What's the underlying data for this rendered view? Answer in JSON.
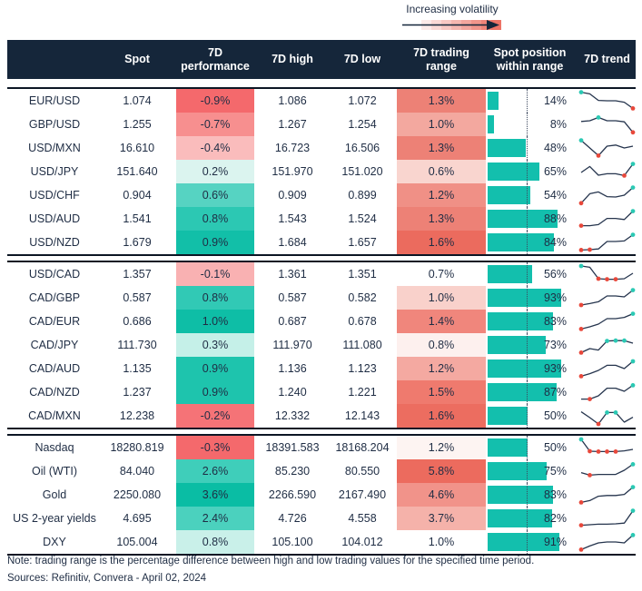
{
  "legend": {
    "label": "Increasing volatility",
    "gradient": [
      "#FFFFFF",
      "#FCEAE8",
      "#FAD9D5",
      "#F8C8C3",
      "#F5B7B0",
      "#F3A69E",
      "#F1958B",
      "#EF8479",
      "#ED7366"
    ]
  },
  "colors": {
    "header_bg": "#15263A",
    "header_text": "#FFFFFF",
    "body_text": "#1F2D44",
    "group_border": "#0C1624",
    "position_bar": "#13BFAD",
    "trend_line": "#25344D",
    "trend_dot_high": "#2BC9B4",
    "trend_dot_low": "#E8483B",
    "arrow": "#15263A"
  },
  "chart_data": {
    "type": "table",
    "columns": [
      "",
      "Spot",
      "7D performance",
      "7D high",
      "7D low",
      "7D trading range",
      "Spot position within range",
      "7D trend"
    ],
    "position_midline_pct": 50,
    "groups": [
      {
        "rows": [
          {
            "label": "EUR/USD",
            "spot": "1.074",
            "perf": "-0.9%",
            "perf_color": "#F4696C",
            "high": "1.086",
            "low": "1.072",
            "range": "1.3%",
            "range_color": "#ED8176",
            "position_pct": 14,
            "position_label": "14%",
            "trend": {
              "y": [
                0.97,
                0.88,
                0.52,
                0.5,
                0.5,
                0.42,
                0.08
              ],
              "marks": [
                {
                  "i": 0,
                  "t": "high"
                },
                {
                  "i": 6,
                  "t": "low"
                }
              ]
            }
          },
          {
            "label": "GBP/USD",
            "spot": "1.255",
            "perf": "-0.7%",
            "perf_color": "#F78F8F",
            "high": "1.267",
            "low": "1.254",
            "range": "1.0%",
            "range_color": "#F3A89F",
            "position_pct": 8,
            "position_label": "8%",
            "trend": {
              "y": [
                0.66,
                0.7,
                0.88,
                0.7,
                0.7,
                0.64,
                0.06
              ],
              "marks": [
                {
                  "i": 2,
                  "t": "high"
                },
                {
                  "i": 6,
                  "t": "low"
                }
              ]
            }
          },
          {
            "label": "USD/MXN",
            "spot": "16.610",
            "perf": "-0.4%",
            "perf_color": "#FABCBC",
            "high": "16.723",
            "low": "16.506",
            "range": "1.3%",
            "range_color": "#ED8176",
            "position_pct": 48,
            "position_label": "48%",
            "trend": {
              "y": [
                0.92,
                0.5,
                0.08,
                0.6,
                0.66,
                0.5,
                0.6
              ],
              "marks": [
                {
                  "i": 0,
                  "t": "high"
                },
                {
                  "i": 2,
                  "t": "low"
                }
              ]
            }
          },
          {
            "label": "USD/JPY",
            "spot": "151.640",
            "perf": "0.2%",
            "perf_color": "#DBF4EF",
            "high": "151.970",
            "low": "151.020",
            "range": "0.6%",
            "range_color": "#F9D5CF",
            "position_pct": 65,
            "position_label": "65%",
            "trend": {
              "y": [
                0.45,
                0.78,
                0.3,
                0.38,
                0.38,
                0.28,
                0.92
              ],
              "marks": [
                {
                  "i": 5,
                  "t": "low"
                },
                {
                  "i": 6,
                  "t": "high"
                }
              ]
            }
          },
          {
            "label": "USD/CHF",
            "spot": "0.904",
            "perf": "0.6%",
            "perf_color": "#56D3C2",
            "high": "0.909",
            "low": "0.899",
            "range": "1.2%",
            "range_color": "#F09086",
            "position_pct": 54,
            "position_label": "54%",
            "trend": {
              "y": [
                0.06,
                0.58,
                0.68,
                0.42,
                0.4,
                0.5,
                0.92
              ],
              "marks": [
                {
                  "i": 0,
                  "t": "low"
                },
                {
                  "i": 6,
                  "t": "high"
                }
              ]
            }
          },
          {
            "label": "USD/AUD",
            "spot": "1.541",
            "perf": "0.8%",
            "perf_color": "#2CC8B3",
            "high": "1.543",
            "low": "1.524",
            "range": "1.3%",
            "range_color": "#ED8176",
            "position_pct": 88,
            "position_label": "88%",
            "trend": {
              "y": [
                0.12,
                0.12,
                0.18,
                0.52,
                0.52,
                0.46,
                0.92
              ],
              "marks": [
                {
                  "i": 0,
                  "t": "low"
                },
                {
                  "i": 6,
                  "t": "high"
                }
              ]
            }
          },
          {
            "label": "USD/NZD",
            "spot": "1.679",
            "perf": "0.9%",
            "perf_color": "#12BFA8",
            "high": "1.684",
            "low": "1.657",
            "range": "1.6%",
            "range_color": "#EB6B5E",
            "position_pct": 84,
            "position_label": "84%",
            "trend": {
              "y": [
                0.08,
                0.1,
                0.14,
                0.55,
                0.55,
                0.58,
                0.92
              ],
              "marks": [
                {
                  "i": 0,
                  "t": "low"
                },
                {
                  "i": 1,
                  "t": "low"
                },
                {
                  "i": 6,
                  "t": "high"
                }
              ]
            }
          }
        ]
      },
      {
        "rows": [
          {
            "label": "USD/CAD",
            "spot": "1.357",
            "perf": "-0.1%",
            "perf_color": "#F9B1B2",
            "high": "1.361",
            "low": "1.351",
            "range": "0.7%",
            "range_color": "#FFFFFF",
            "position_pct": 56,
            "position_label": "56%",
            "trend": {
              "y": [
                0.95,
                0.88,
                0.25,
                0.22,
                0.22,
                0.25,
                0.55
              ],
              "marks": [
                {
                  "i": 0,
                  "t": "high"
                },
                {
                  "i": 2,
                  "t": "low"
                },
                {
                  "i": 3,
                  "t": "low"
                },
                {
                  "i": 4,
                  "t": "low"
                }
              ]
            }
          },
          {
            "label": "CAD/GBP",
            "spot": "0.587",
            "perf": "0.8%",
            "perf_color": "#31C9B5",
            "high": "0.587",
            "low": "0.582",
            "range": "1.0%",
            "range_color": "#F9D1CB",
            "position_pct": 93,
            "position_label": "93%",
            "trend": {
              "y": [
                0.1,
                0.18,
                0.28,
                0.6,
                0.6,
                0.55,
                0.92
              ],
              "marks": [
                {
                  "i": 0,
                  "t": "low"
                },
                {
                  "i": 6,
                  "t": "high"
                }
              ]
            }
          },
          {
            "label": "CAD/EUR",
            "spot": "0.686",
            "perf": "1.0%",
            "perf_color": "#0EBEA6",
            "high": "0.687",
            "low": "0.678",
            "range": "1.4%",
            "range_color": "#F0867C",
            "position_pct": 83,
            "position_label": "83%",
            "trend": {
              "y": [
                0.08,
                0.2,
                0.35,
                0.65,
                0.65,
                0.72,
                0.92
              ],
              "marks": [
                {
                  "i": 0,
                  "t": "low"
                },
                {
                  "i": 6,
                  "t": "high"
                }
              ]
            }
          },
          {
            "label": "CAD/JPY",
            "spot": "111.730",
            "perf": "0.3%",
            "perf_color": "#C5F0E8",
            "high": "111.970",
            "low": "111.080",
            "range": "0.8%",
            "range_color": "#FDF0EE",
            "position_pct": 73,
            "position_label": "73%",
            "trend": {
              "y": [
                0.08,
                0.3,
                0.22,
                0.72,
                0.74,
                0.74,
                0.6
              ],
              "marks": [
                {
                  "i": 0,
                  "t": "low"
                },
                {
                  "i": 3,
                  "t": "high"
                },
                {
                  "i": 4,
                  "t": "high"
                },
                {
                  "i": 5,
                  "t": "high"
                }
              ]
            }
          },
          {
            "label": "CAD/AUD",
            "spot": "1.135",
            "perf": "0.9%",
            "perf_color": "#1EC4AD",
            "high": "1.136",
            "low": "1.123",
            "range": "1.2%",
            "range_color": "#F4A9A1",
            "position_pct": 93,
            "position_label": "93%",
            "trend": {
              "y": [
                0.08,
                0.22,
                0.4,
                0.68,
                0.68,
                0.5,
                0.9
              ],
              "marks": [
                {
                  "i": 0,
                  "t": "low"
                },
                {
                  "i": 6,
                  "t": "high"
                }
              ]
            }
          },
          {
            "label": "CAD/NZD",
            "spot": "1.237",
            "perf": "0.9%",
            "perf_color": "#1EC4AD",
            "high": "1.240",
            "low": "1.221",
            "range": "1.5%",
            "range_color": "#EF7A6E",
            "position_pct": 87,
            "position_label": "87%",
            "trend": {
              "y": [
                0.12,
                0.12,
                0.3,
                0.72,
                0.72,
                0.55,
                0.88
              ],
              "marks": [
                {
                  "i": 1,
                  "t": "low"
                },
                {
                  "i": 6,
                  "t": "high"
                }
              ]
            }
          },
          {
            "label": "CAD/MXN",
            "spot": "12.238",
            "perf": "-0.2%",
            "perf_color": "#F57377",
            "high": "12.332",
            "low": "12.143",
            "range": "1.6%",
            "range_color": "#EC6D60",
            "position_pct": 50,
            "position_label": "50%",
            "trend": {
              "y": [
                0.72,
                0.4,
                0.05,
                0.68,
                0.68,
                0.15,
                0.42
              ],
              "marks": [
                {
                  "i": 2,
                  "t": "low"
                },
                {
                  "i": 3,
                  "t": "high"
                },
                {
                  "i": 4,
                  "t": "high"
                }
              ]
            }
          }
        ]
      },
      {
        "rows": [
          {
            "label": "Nasdaq",
            "spot": "18280.819",
            "perf": "-0.3%",
            "perf_color": "#F4696C",
            "high": "18391.583",
            "low": "18168.204",
            "range": "1.2%",
            "range_color": "#FDF4F2",
            "position_pct": 50,
            "position_label": "50%",
            "trend": {
              "y": [
                0.95,
                0.3,
                0.28,
                0.28,
                0.28,
                0.32,
                0.4
              ],
              "marks": [
                {
                  "i": 0,
                  "t": "high"
                },
                {
                  "i": 1,
                  "t": "low"
                },
                {
                  "i": 2,
                  "t": "low"
                },
                {
                  "i": 3,
                  "t": "low"
                },
                {
                  "i": 4,
                  "t": "low"
                }
              ]
            }
          },
          {
            "label": "Oil (WTI)",
            "spot": "84.040",
            "perf": "2.6%",
            "perf_color": "#3FCEBA",
            "high": "85.230",
            "low": "80.550",
            "range": "5.8%",
            "range_color": "#EC6B5E",
            "position_pct": 75,
            "position_label": "75%",
            "trend": {
              "y": [
                0.42,
                0.28,
                0.32,
                0.32,
                0.32,
                0.55,
                0.88
              ],
              "marks": [
                {
                  "i": 1,
                  "t": "low"
                },
                {
                  "i": 6,
                  "t": "high"
                }
              ]
            }
          },
          {
            "label": "Gold",
            "spot": "2250.080",
            "perf": "3.6%",
            "perf_color": "#0ABDA4",
            "high": "2266.590",
            "low": "2167.490",
            "range": "4.6%",
            "range_color": "#F1938A",
            "position_pct": 83,
            "position_label": "83%",
            "trend": {
              "y": [
                0.08,
                0.18,
                0.42,
                0.46,
                0.46,
                0.52,
                0.92
              ],
              "marks": [
                {
                  "i": 0,
                  "t": "low"
                },
                {
                  "i": 6,
                  "t": "high"
                }
              ]
            }
          },
          {
            "label": "US 2-year yields",
            "spot": "4.695",
            "perf": "2.4%",
            "perf_color": "#4BD1BE",
            "high": "4.726",
            "low": "4.558",
            "range": "3.7%",
            "range_color": "#F5B2AA",
            "position_pct": 82,
            "position_label": "82%",
            "trend": {
              "y": [
                0.12,
                0.15,
                0.18,
                0.18,
                0.2,
                0.24,
                0.92
              ],
              "marks": [
                {
                  "i": 0,
                  "t": "low"
                },
                {
                  "i": 6,
                  "t": "high"
                }
              ]
            }
          },
          {
            "label": "DXY",
            "spot": "105.004",
            "perf": "0.8%",
            "perf_color": "#C9F0E9",
            "high": "105.100",
            "low": "104.012",
            "range": "1.0%",
            "range_color": "#FFFFFF",
            "position_pct": 91,
            "position_label": "91%",
            "trend": {
              "y": [
                0.08,
                0.28,
                0.45,
                0.5,
                0.5,
                0.45,
                0.88
              ],
              "marks": [
                {
                  "i": 0,
                  "t": "low"
                },
                {
                  "i": 6,
                  "t": "high"
                }
              ]
            }
          }
        ]
      }
    ]
  },
  "footer": {
    "note": "Note: trading range is the percentage difference between high and low trading values for the specified time period.",
    "sources": "Sources: Refinitiv, Convera - April 02, 2024"
  }
}
